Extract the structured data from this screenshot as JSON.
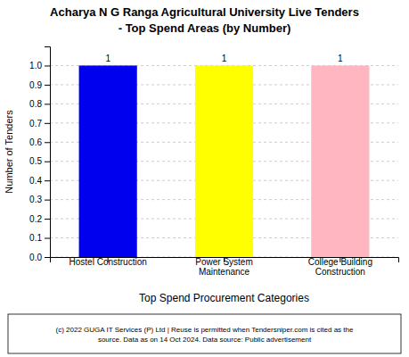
{
  "chart_data": {
    "type": "bar",
    "title": "Acharya N G Ranga Agricultural University Live Tenders",
    "subtitle": " - Top Spend Areas (by Number)",
    "categories": [
      "Hostel Construction",
      "Power System\nMaintenance",
      "College Building\nConstruction"
    ],
    "values": [
      1,
      1,
      1
    ],
    "colors": [
      "#0000ee",
      "#ffff00",
      "#ffb6c1"
    ],
    "xlabel": "Top Spend Procurement Categories",
    "ylabel": "Number of Tenders",
    "ylim": [
      0,
      1.1
    ],
    "yticks": [
      {
        "value": 0.0,
        "label": "0.0"
      },
      0.1,
      0.2,
      0.3,
      0.4,
      0.5,
      0.6,
      0.7,
      0.8,
      0.9,
      {
        "value": 1.0,
        "label": "1.0"
      }
    ],
    "grid": true,
    "data_labels": true,
    "annotations": [
      "(c) 2022 GUGA IT Services (P) Ltd | Reuse is permitted when Tendersniper.com is cited as the\nsource. Data as on 14 Oct 2024. Data source: Public advertisement"
    ]
  }
}
